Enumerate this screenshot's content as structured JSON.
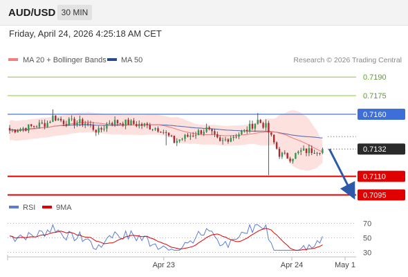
{
  "header": {
    "symbol": "AUD/USD",
    "timeframe": "30 MIN",
    "datetime": "Friday, April 24, 2026 4:25:18 AM CET"
  },
  "copyright": "Research © 2026 Trading Central",
  "chart_data": [
    {
      "type": "candlestick",
      "legend": [
        {
          "name": "MA 20 + Bollinger Bands",
          "color": "#f08080"
        },
        {
          "name": "MA 50",
          "color": "#2b4a8b"
        }
      ],
      "ylim": [
        0.70925,
        0.71985
      ],
      "levels": [
        {
          "value": 0.719,
          "label": "0.7190",
          "style": "green-line"
        },
        {
          "value": 0.7175,
          "label": "0.7175",
          "style": "green-line"
        },
        {
          "value": 0.716,
          "label": "0.7160",
          "style": "blue-box"
        },
        {
          "value": 0.7132,
          "label": "0.7132",
          "style": "current-price"
        },
        {
          "value": 0.711,
          "label": "0.7110",
          "style": "red-box"
        },
        {
          "value": 0.7095,
          "label": "0.7095",
          "style": "red-box"
        }
      ],
      "x_ticks": [
        {
          "label": "Apr 23",
          "index": 52
        },
        {
          "label": "Apr 24",
          "index": 100
        },
        {
          "label": "May 1",
          "index": 118
        }
      ],
      "forecast_arrow": {
        "from": 0.7132,
        "to": 0.7095
      }
    },
    {
      "type": "line",
      "legend": [
        {
          "name": "RSI",
          "color": "#5b7bd5"
        },
        {
          "name": "9MA",
          "color": "#e00000"
        }
      ],
      "ylim": [
        20,
        80
      ],
      "y_ticks": [
        70,
        50,
        30
      ]
    }
  ]
}
